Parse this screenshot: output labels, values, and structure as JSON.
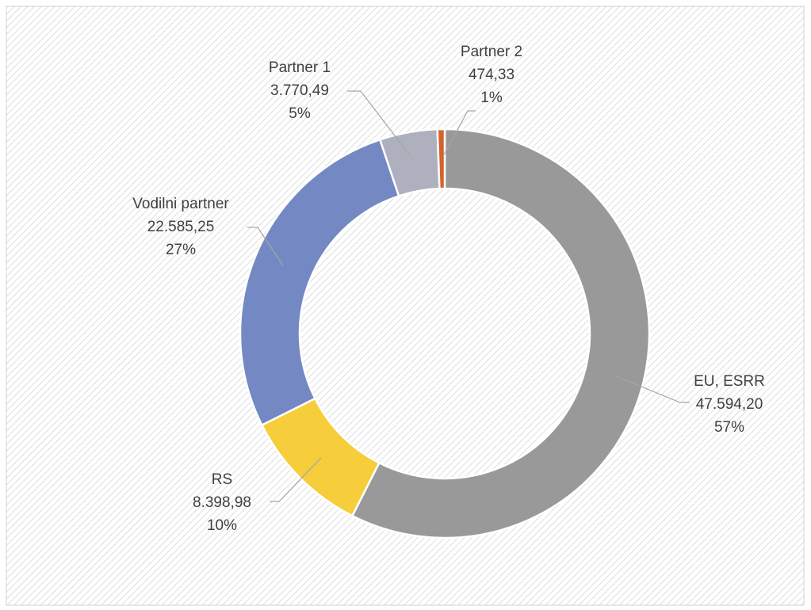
{
  "chart_data": {
    "type": "donut",
    "categories": [
      "EU, ESRR",
      "RS",
      "Vodilni partner",
      "Partner 1",
      "Partner 2"
    ],
    "values": [
      47594.2,
      8398.98,
      22585.25,
      3770.49,
      474.33
    ],
    "value_labels": [
      "47.594,20",
      "8.398,98",
      "22.585,25",
      "3.770,49",
      "474,33"
    ],
    "percent_labels": [
      "57%",
      "10%",
      "27%",
      "5%",
      "1%"
    ],
    "colors": [
      "#999999",
      "#f6cd3a",
      "#7489c3",
      "#aeb0be",
      "#d4622b"
    ]
  }
}
